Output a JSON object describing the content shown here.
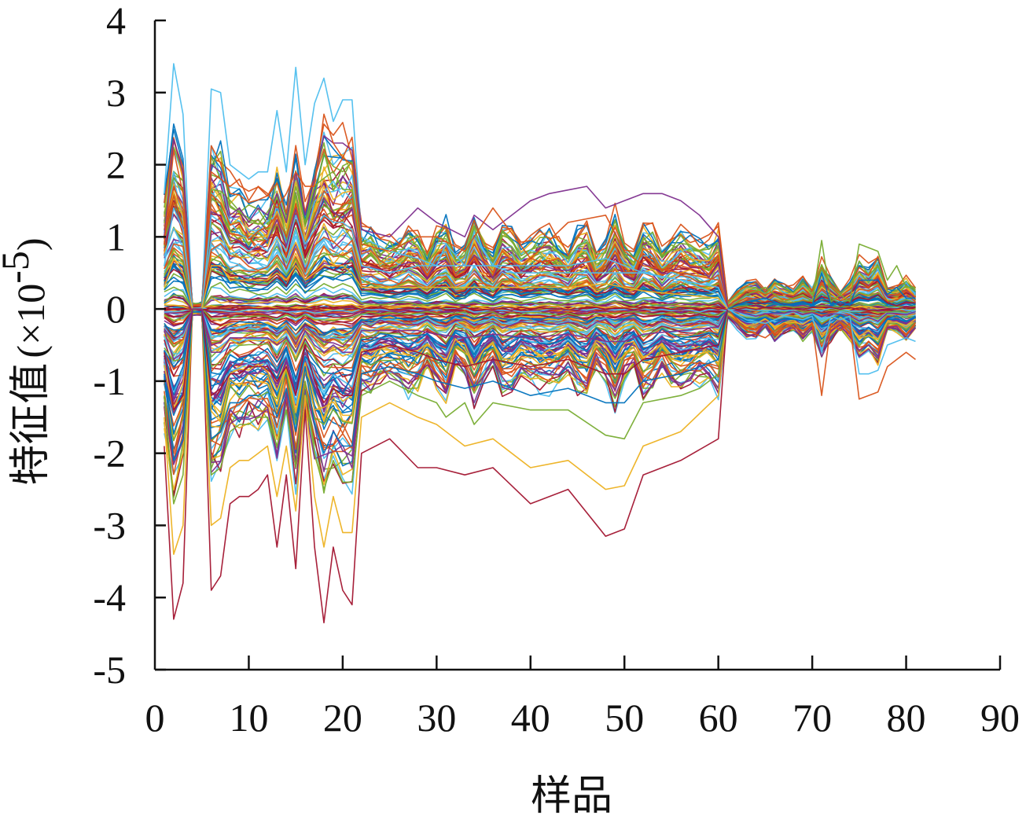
{
  "chart_data": {
    "type": "line",
    "xlabel": "样品",
    "ylabel": "特征值",
    "ylabel_unit_prefix": "(×10",
    "ylabel_unit_exponent": "-5",
    "ylabel_unit_suffix": ")",
    "xlim": [
      0,
      90
    ],
    "ylim": [
      -5,
      4
    ],
    "x_ticks": [
      {
        "value": 0,
        "label": "0"
      },
      {
        "value": 10,
        "label": "10"
      },
      {
        "value": 20,
        "label": "20"
      },
      {
        "value": 30,
        "label": "30"
      },
      {
        "value": 40,
        "label": "40"
      },
      {
        "value": 50,
        "label": "50"
      },
      {
        "value": 60,
        "label": "60"
      },
      {
        "value": 70,
        "label": "70"
      },
      {
        "value": 80,
        "label": "80"
      },
      {
        "value": 90,
        "label": "90"
      }
    ],
    "y_ticks": [
      {
        "value": 4,
        "label": "4"
      },
      {
        "value": 3,
        "label": "3"
      },
      {
        "value": 2,
        "label": "2"
      },
      {
        "value": 1,
        "label": "1"
      },
      {
        "value": 0,
        "label": "0"
      },
      {
        "value": -1,
        "label": "-1"
      },
      {
        "value": -2,
        "label": "-2"
      },
      {
        "value": -3,
        "label": "-3"
      },
      {
        "value": -4,
        "label": "-4"
      },
      {
        "value": -5,
        "label": "-5"
      }
    ],
    "grid": false,
    "legend": "none",
    "samples": 81,
    "palette": [
      "#4dbeee",
      "#a2142f",
      "#edb120",
      "#7e2f8e",
      "#77ac30",
      "#d95319",
      "#0072bd"
    ],
    "series": [
      {
        "x": [
          1,
          2,
          3,
          4,
          5,
          6,
          7,
          8,
          9,
          10,
          11,
          12,
          13,
          14,
          15,
          16,
          17,
          18,
          19,
          20,
          21,
          22,
          25,
          28,
          30,
          31,
          33,
          34,
          36,
          38,
          40,
          44,
          48,
          52,
          56,
          58,
          60,
          61
        ],
        "values": [
          1.6,
          3.4,
          2.7,
          0,
          0,
          3.05,
          3.0,
          2.0,
          1.9,
          1.8,
          1.9,
          1.9,
          2.75,
          1.9,
          3.35,
          2.0,
          2.85,
          3.2,
          2.6,
          2.9,
          2.9,
          1.0,
          0.8,
          0.7,
          0.6,
          0.9,
          0.6,
          1.0,
          0.6,
          0.5,
          0.5,
          0.5,
          0.5,
          0.5,
          0.4,
          0.3,
          0.2,
          0
        ]
      },
      {
        "x": [
          1,
          2,
          3,
          4,
          5,
          6,
          7,
          8,
          9,
          10,
          11,
          12,
          13,
          14,
          15,
          16,
          17,
          18,
          19,
          20,
          21,
          22,
          25,
          28,
          30,
          33,
          36,
          40,
          44,
          48,
          50,
          52,
          56,
          60,
          61
        ],
        "values": [
          -1.9,
          -4.3,
          -3.8,
          0,
          0,
          -3.9,
          -3.7,
          -2.7,
          -2.6,
          -2.6,
          -2.5,
          -2.3,
          -3.3,
          -2.3,
          -3.6,
          -1.4,
          -3.3,
          -4.35,
          -3.3,
          -3.9,
          -4.1,
          -2.0,
          -1.8,
          -2.2,
          -2.2,
          -2.3,
          -2.2,
          -2.7,
          -2.5,
          -3.15,
          -3.05,
          -2.3,
          -2.1,
          -1.8,
          0
        ]
      },
      {
        "x": [
          1,
          2,
          3,
          4,
          5,
          6,
          7,
          8,
          9,
          10,
          11,
          12,
          13,
          14,
          15,
          16,
          17,
          18,
          19,
          20,
          21,
          22,
          25,
          28,
          30,
          33,
          36,
          40,
          44,
          48,
          50,
          52,
          56,
          60,
          61
        ],
        "values": [
          -1.5,
          -3.4,
          -3.0,
          0,
          0,
          -3.0,
          -2.9,
          -2.2,
          -2.1,
          -2.1,
          -2.0,
          -1.9,
          -2.6,
          -1.9,
          -2.8,
          -1.2,
          -2.6,
          -3.3,
          -2.6,
          -3.1,
          -3.1,
          -1.5,
          -1.3,
          -1.5,
          -1.6,
          -1.9,
          -1.8,
          -2.2,
          -2.1,
          -2.5,
          -2.45,
          -1.9,
          -1.7,
          -1.2,
          0
        ]
      },
      {
        "x": [
          1,
          2,
          3,
          4,
          5,
          6,
          7,
          8,
          9,
          10,
          11,
          12,
          13,
          14,
          15,
          16,
          17,
          18,
          19,
          20,
          21,
          22,
          25,
          28,
          30,
          33,
          34,
          36,
          40,
          42,
          44,
          46,
          48,
          50,
          52,
          54,
          56,
          58,
          60,
          61
        ],
        "values": [
          1.0,
          2.35,
          1.9,
          0,
          0,
          2.0,
          1.9,
          1.3,
          1.4,
          1.2,
          1.4,
          1.3,
          1.6,
          1.2,
          1.9,
          1.3,
          1.8,
          2.4,
          2.3,
          2.3,
          2.2,
          1.1,
          1.0,
          1.4,
          1.2,
          1.0,
          1.3,
          1.1,
          1.5,
          1.6,
          1.65,
          1.7,
          1.4,
          1.5,
          1.6,
          1.6,
          1.5,
          1.3,
          1.0,
          0
        ]
      },
      {
        "x": [
          1,
          2,
          3,
          4,
          5,
          6,
          7,
          8,
          9,
          10,
          11,
          12,
          13,
          14,
          15,
          16,
          17,
          18,
          19,
          20,
          21,
          22,
          25,
          28,
          30,
          31,
          33,
          34,
          36,
          40,
          44,
          48,
          50,
          52,
          56,
          58,
          60,
          61
        ],
        "values": [
          -1.2,
          -2.7,
          -2.3,
          0,
          0,
          -2.3,
          -2.2,
          -1.7,
          -1.6,
          -1.6,
          -1.5,
          -1.5,
          -1.9,
          -1.4,
          -2.2,
          -1.0,
          -2.0,
          -2.5,
          -2.1,
          -2.4,
          -2.4,
          -1.2,
          -1.0,
          -1.2,
          -1.3,
          -1.5,
          -1.3,
          -1.6,
          -1.3,
          -1.4,
          -1.4,
          -1.75,
          -1.8,
          -1.3,
          -1.2,
          -1.1,
          -0.9,
          0
        ]
      },
      {
        "x": [
          1,
          2,
          3,
          4,
          5,
          6,
          7,
          8,
          9,
          10,
          11,
          12,
          13,
          14,
          15,
          16,
          17,
          18,
          19,
          20,
          21,
          22,
          25,
          28,
          30,
          33,
          36,
          40,
          44,
          48,
          50,
          52,
          56,
          60,
          61
        ],
        "values": [
          0.9,
          2.2,
          1.6,
          0,
          0,
          1.9,
          1.8,
          1.7,
          1.8,
          1.5,
          1.7,
          1.6,
          1.4,
          1.6,
          1.9,
          1.7,
          1.7,
          2.7,
          2.3,
          2.1,
          2.0,
          0.9,
          0.8,
          1.0,
          1.0,
          0.8,
          1.4,
          0.7,
          1.2,
          1.3,
          0.8,
          0.6,
          0.5,
          0.4,
          0
        ]
      },
      {
        "x": [
          1,
          2,
          3,
          4,
          5,
          6,
          7,
          8,
          9,
          10,
          11,
          12,
          13,
          14,
          15,
          16,
          17,
          18,
          19,
          20,
          21,
          22,
          25,
          28,
          30,
          33,
          36,
          40,
          44,
          48,
          50,
          52,
          56,
          60,
          61
        ],
        "values": [
          -0.9,
          -2.1,
          -1.8,
          0,
          0,
          -1.8,
          -1.7,
          -1.3,
          -1.3,
          -1.2,
          -1.2,
          -1.1,
          -1.5,
          -1.1,
          -1.7,
          -0.8,
          -1.6,
          -2.0,
          -1.7,
          -1.9,
          -1.9,
          -0.9,
          -0.8,
          -0.9,
          -1.0,
          -1.1,
          -1.0,
          -1.2,
          -1.1,
          -1.3,
          -1.3,
          -1.0,
          -0.9,
          -0.7,
          0
        ]
      },
      {
        "x": [
          1,
          2,
          3,
          4,
          5,
          6,
          7,
          8,
          9,
          10,
          11,
          12,
          13,
          14,
          15,
          16,
          17,
          18,
          19,
          20,
          21,
          22,
          25,
          28,
          30,
          33,
          36,
          40,
          44,
          48,
          50,
          52,
          56,
          60,
          61
        ],
        "values": [
          0.6,
          1.4,
          1.1,
          0,
          0,
          1.3,
          1.2,
          0.9,
          0.9,
          0.8,
          0.9,
          0.8,
          1.0,
          0.8,
          1.3,
          0.9,
          1.1,
          1.3,
          1.2,
          1.2,
          1.1,
          0.6,
          0.5,
          0.6,
          0.6,
          0.6,
          0.6,
          0.6,
          0.6,
          0.7,
          0.6,
          0.5,
          0.4,
          0.3,
          0
        ]
      },
      {
        "x": [
          1,
          2,
          3,
          4,
          5,
          6,
          7,
          8,
          9,
          10,
          11,
          12,
          13,
          14,
          15,
          16,
          17,
          18,
          19,
          20,
          21,
          22,
          25,
          28,
          30,
          33,
          36,
          40,
          44,
          48,
          50,
          52,
          56,
          60,
          61
        ],
        "values": [
          -0.6,
          -1.4,
          -1.2,
          0,
          0,
          -1.2,
          -1.1,
          -0.9,
          -0.9,
          -0.8,
          -0.8,
          -0.8,
          -1.0,
          -0.8,
          -1.2,
          -0.5,
          -1.0,
          -1.3,
          -1.1,
          -1.2,
          -1.2,
          -0.6,
          -0.5,
          -0.6,
          -0.7,
          -0.8,
          -0.7,
          -0.8,
          -0.7,
          -0.9,
          -0.9,
          -0.7,
          -0.6,
          -0.5,
          0
        ]
      },
      {
        "x": [
          1,
          2,
          3,
          4,
          5,
          6,
          7,
          8,
          9,
          10,
          11,
          12,
          13,
          14,
          15,
          16,
          17,
          18,
          19,
          20,
          21,
          22,
          25,
          28,
          30,
          33,
          36,
          40,
          44,
          48,
          50,
          52,
          56,
          60,
          61
        ],
        "values": [
          0.3,
          0.7,
          0.5,
          0,
          0,
          0.6,
          0.6,
          0.4,
          0.4,
          0.4,
          0.4,
          0.4,
          0.5,
          0.4,
          0.6,
          0.4,
          0.5,
          0.6,
          0.6,
          0.6,
          0.5,
          0.3,
          0.3,
          0.3,
          0.3,
          0.3,
          0.3,
          0.3,
          0.3,
          0.35,
          0.3,
          0.25,
          0.2,
          0.15,
          0
        ]
      },
      {
        "x": [
          1,
          2,
          3,
          4,
          5,
          6,
          7,
          8,
          9,
          10,
          11,
          12,
          13,
          14,
          15,
          16,
          17,
          18,
          19,
          20,
          21,
          22,
          25,
          28,
          30,
          33,
          36,
          40,
          44,
          48,
          50,
          52,
          56,
          60,
          61
        ],
        "values": [
          -0.3,
          -0.7,
          -0.6,
          0,
          0,
          -0.6,
          -0.6,
          -0.4,
          -0.4,
          -0.4,
          -0.4,
          -0.4,
          -0.5,
          -0.4,
          -0.6,
          -0.3,
          -0.5,
          -0.6,
          -0.5,
          -0.6,
          -0.6,
          -0.3,
          -0.3,
          -0.3,
          -0.35,
          -0.4,
          -0.35,
          -0.4,
          -0.35,
          -0.45,
          -0.45,
          -0.35,
          -0.3,
          -0.25,
          0
        ]
      },
      {
        "x": [
          61,
          63,
          65,
          67,
          69,
          70,
          71,
          72,
          73,
          74,
          75,
          76,
          77,
          78,
          79,
          80,
          81
        ],
        "values": [
          0,
          0.2,
          0.3,
          0.1,
          0.2,
          0.1,
          0.95,
          0.1,
          0.2,
          0.1,
          0.9,
          0.85,
          0.8,
          0.4,
          0.6,
          0.3,
          0.3
        ]
      },
      {
        "x": [
          61,
          63,
          65,
          67,
          69,
          70,
          71,
          72,
          73,
          74,
          75,
          76,
          77,
          78,
          79,
          80,
          81
        ],
        "values": [
          0,
          -0.3,
          -0.4,
          -0.2,
          -0.3,
          -0.2,
          -1.2,
          -0.2,
          -0.3,
          -0.2,
          -1.25,
          -1.2,
          -1.15,
          -0.8,
          -0.7,
          -0.6,
          -0.7
        ]
      },
      {
        "x": [
          61,
          63,
          65,
          67,
          69,
          70,
          71,
          72,
          73,
          74,
          75,
          76,
          77,
          78,
          79,
          80,
          81
        ],
        "values": [
          0,
          0.1,
          0.15,
          0.05,
          0.1,
          0.05,
          0.5,
          0.05,
          0.1,
          0.05,
          0.4,
          0.4,
          0.4,
          0.2,
          0.3,
          0.15,
          0.15
        ]
      },
      {
        "x": [
          61,
          63,
          65,
          67,
          69,
          70,
          71,
          72,
          73,
          74,
          75,
          76,
          77,
          78,
          79,
          80,
          81
        ],
        "values": [
          0,
          -0.15,
          -0.2,
          -0.1,
          -0.15,
          -0.1,
          -0.6,
          -0.1,
          -0.15,
          -0.1,
          -0.9,
          -0.9,
          -0.85,
          -0.5,
          -0.45,
          -0.4,
          -0.45
        ]
      }
    ]
  }
}
